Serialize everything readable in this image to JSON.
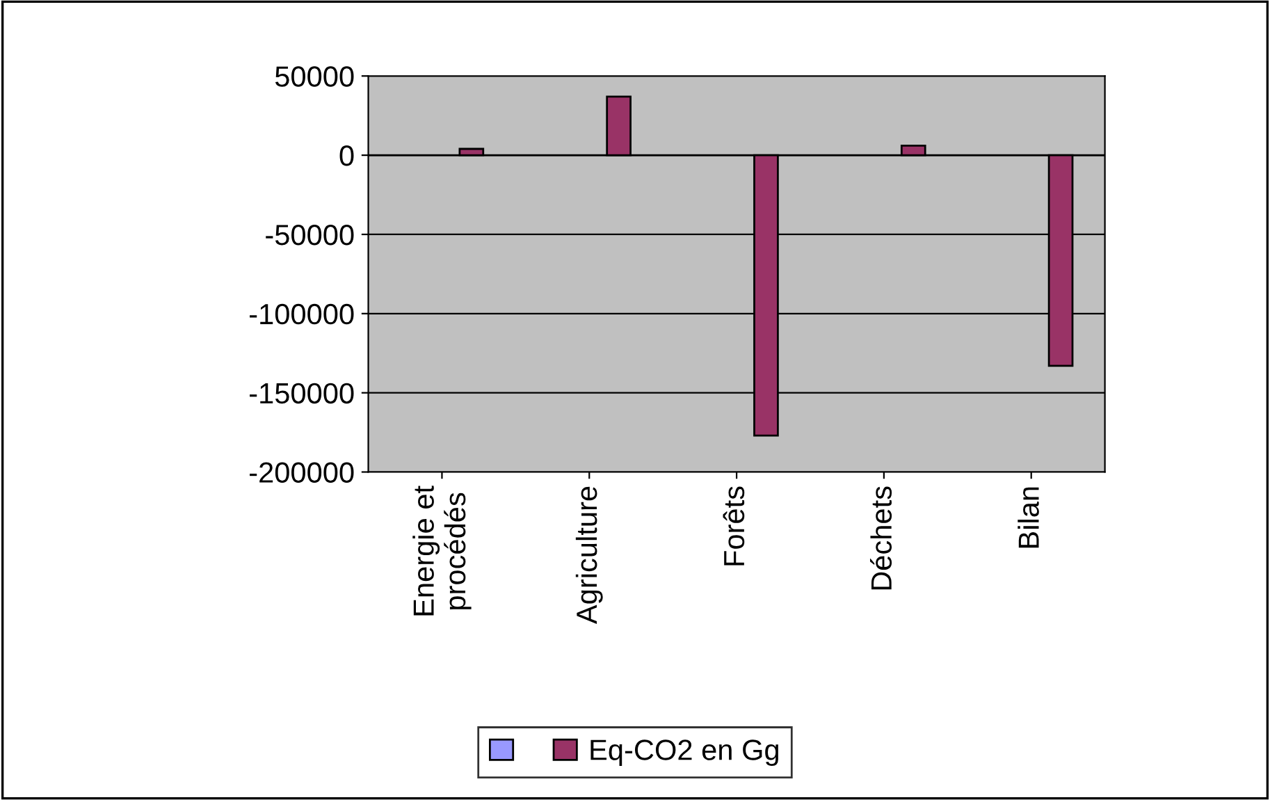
{
  "chart_data": {
    "type": "bar",
    "categories": [
      "Energie et\nprocédés",
      "Agriculture",
      "Forêts",
      "Déchets",
      "Bilan"
    ],
    "series": [
      {
        "color": "#9999ff",
        "values": [
          null,
          null,
          null,
          null,
          null
        ]
      },
      {
        "name": "Eq-CO2 en Gg",
        "color": "#993366",
        "values": [
          4000,
          37000,
          -177000,
          6000,
          -133000
        ]
      }
    ],
    "ylim": [
      -200000,
      50000
    ],
    "yticks": [
      -200000,
      -150000,
      -100000,
      -50000,
      0,
      50000
    ],
    "grid": "y",
    "legend": "bottom"
  }
}
